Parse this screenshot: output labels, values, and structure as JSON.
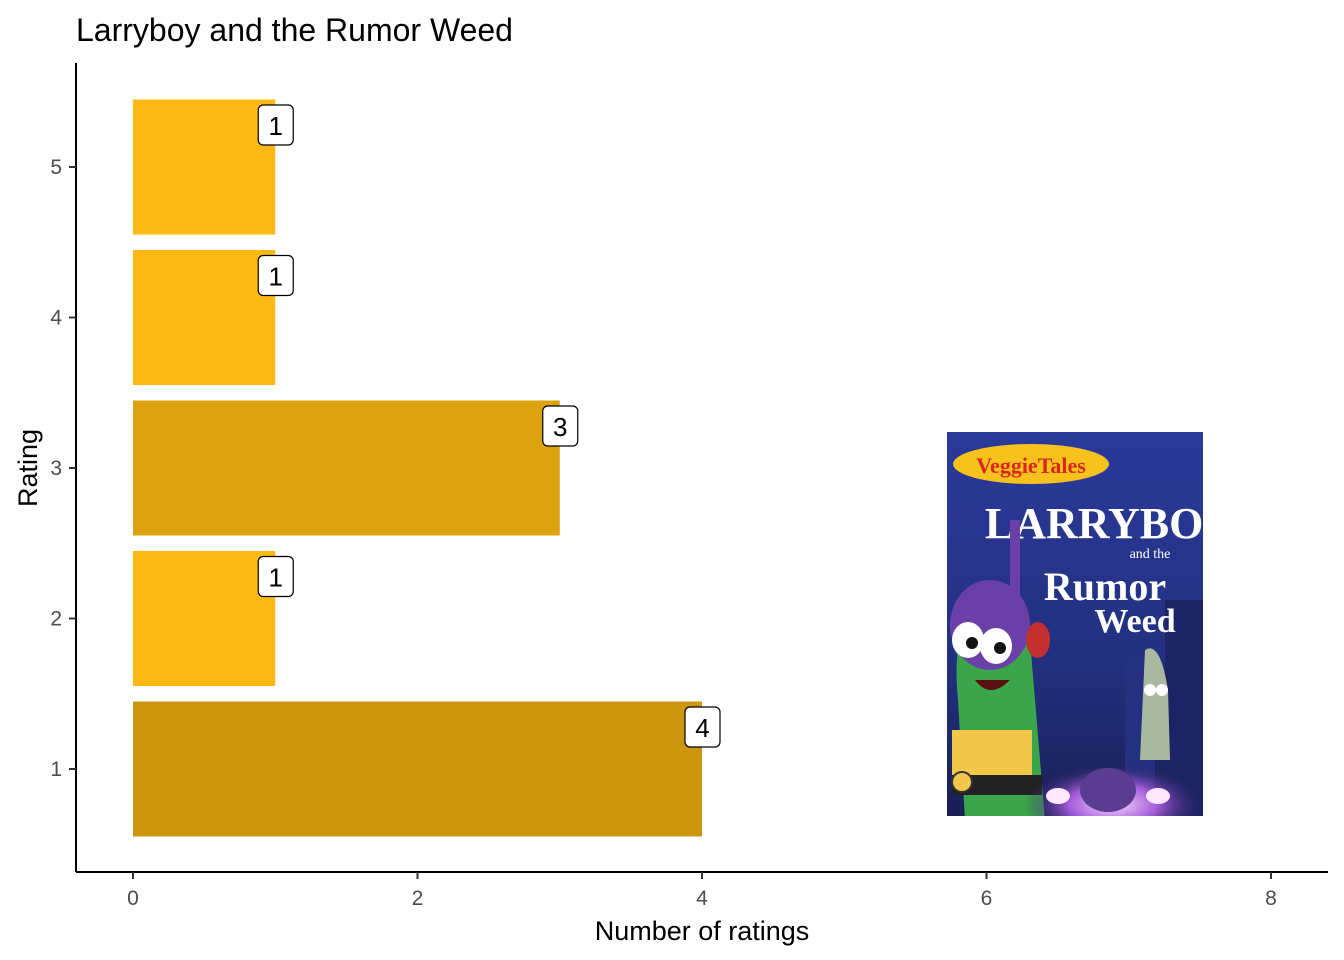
{
  "chart_data": {
    "type": "bar",
    "orientation": "horizontal",
    "title": "Larryboy and the Rumor Weed",
    "xlabel": "Number of ratings",
    "ylabel": "Rating",
    "categories": [
      "1",
      "2",
      "3",
      "4",
      "5"
    ],
    "values": [
      4,
      1,
      3,
      1,
      1
    ],
    "data_labels": [
      "4",
      "1",
      "3",
      "1",
      "1"
    ],
    "xlim": [
      0,
      8
    ],
    "x_ticks": [
      "0",
      "2",
      "4",
      "6",
      "8"
    ],
    "bar_colors": [
      "#cc960e",
      "#fdb913",
      "#dda20f",
      "#fdb913",
      "#fdb913"
    ],
    "grid": false,
    "legend": "none"
  },
  "poster": {
    "brand": "VeggieTales",
    "title_line1": "LARRYBOY",
    "title_line2": "and the",
    "title_line3": "Rumor",
    "title_line4": "Weed"
  }
}
